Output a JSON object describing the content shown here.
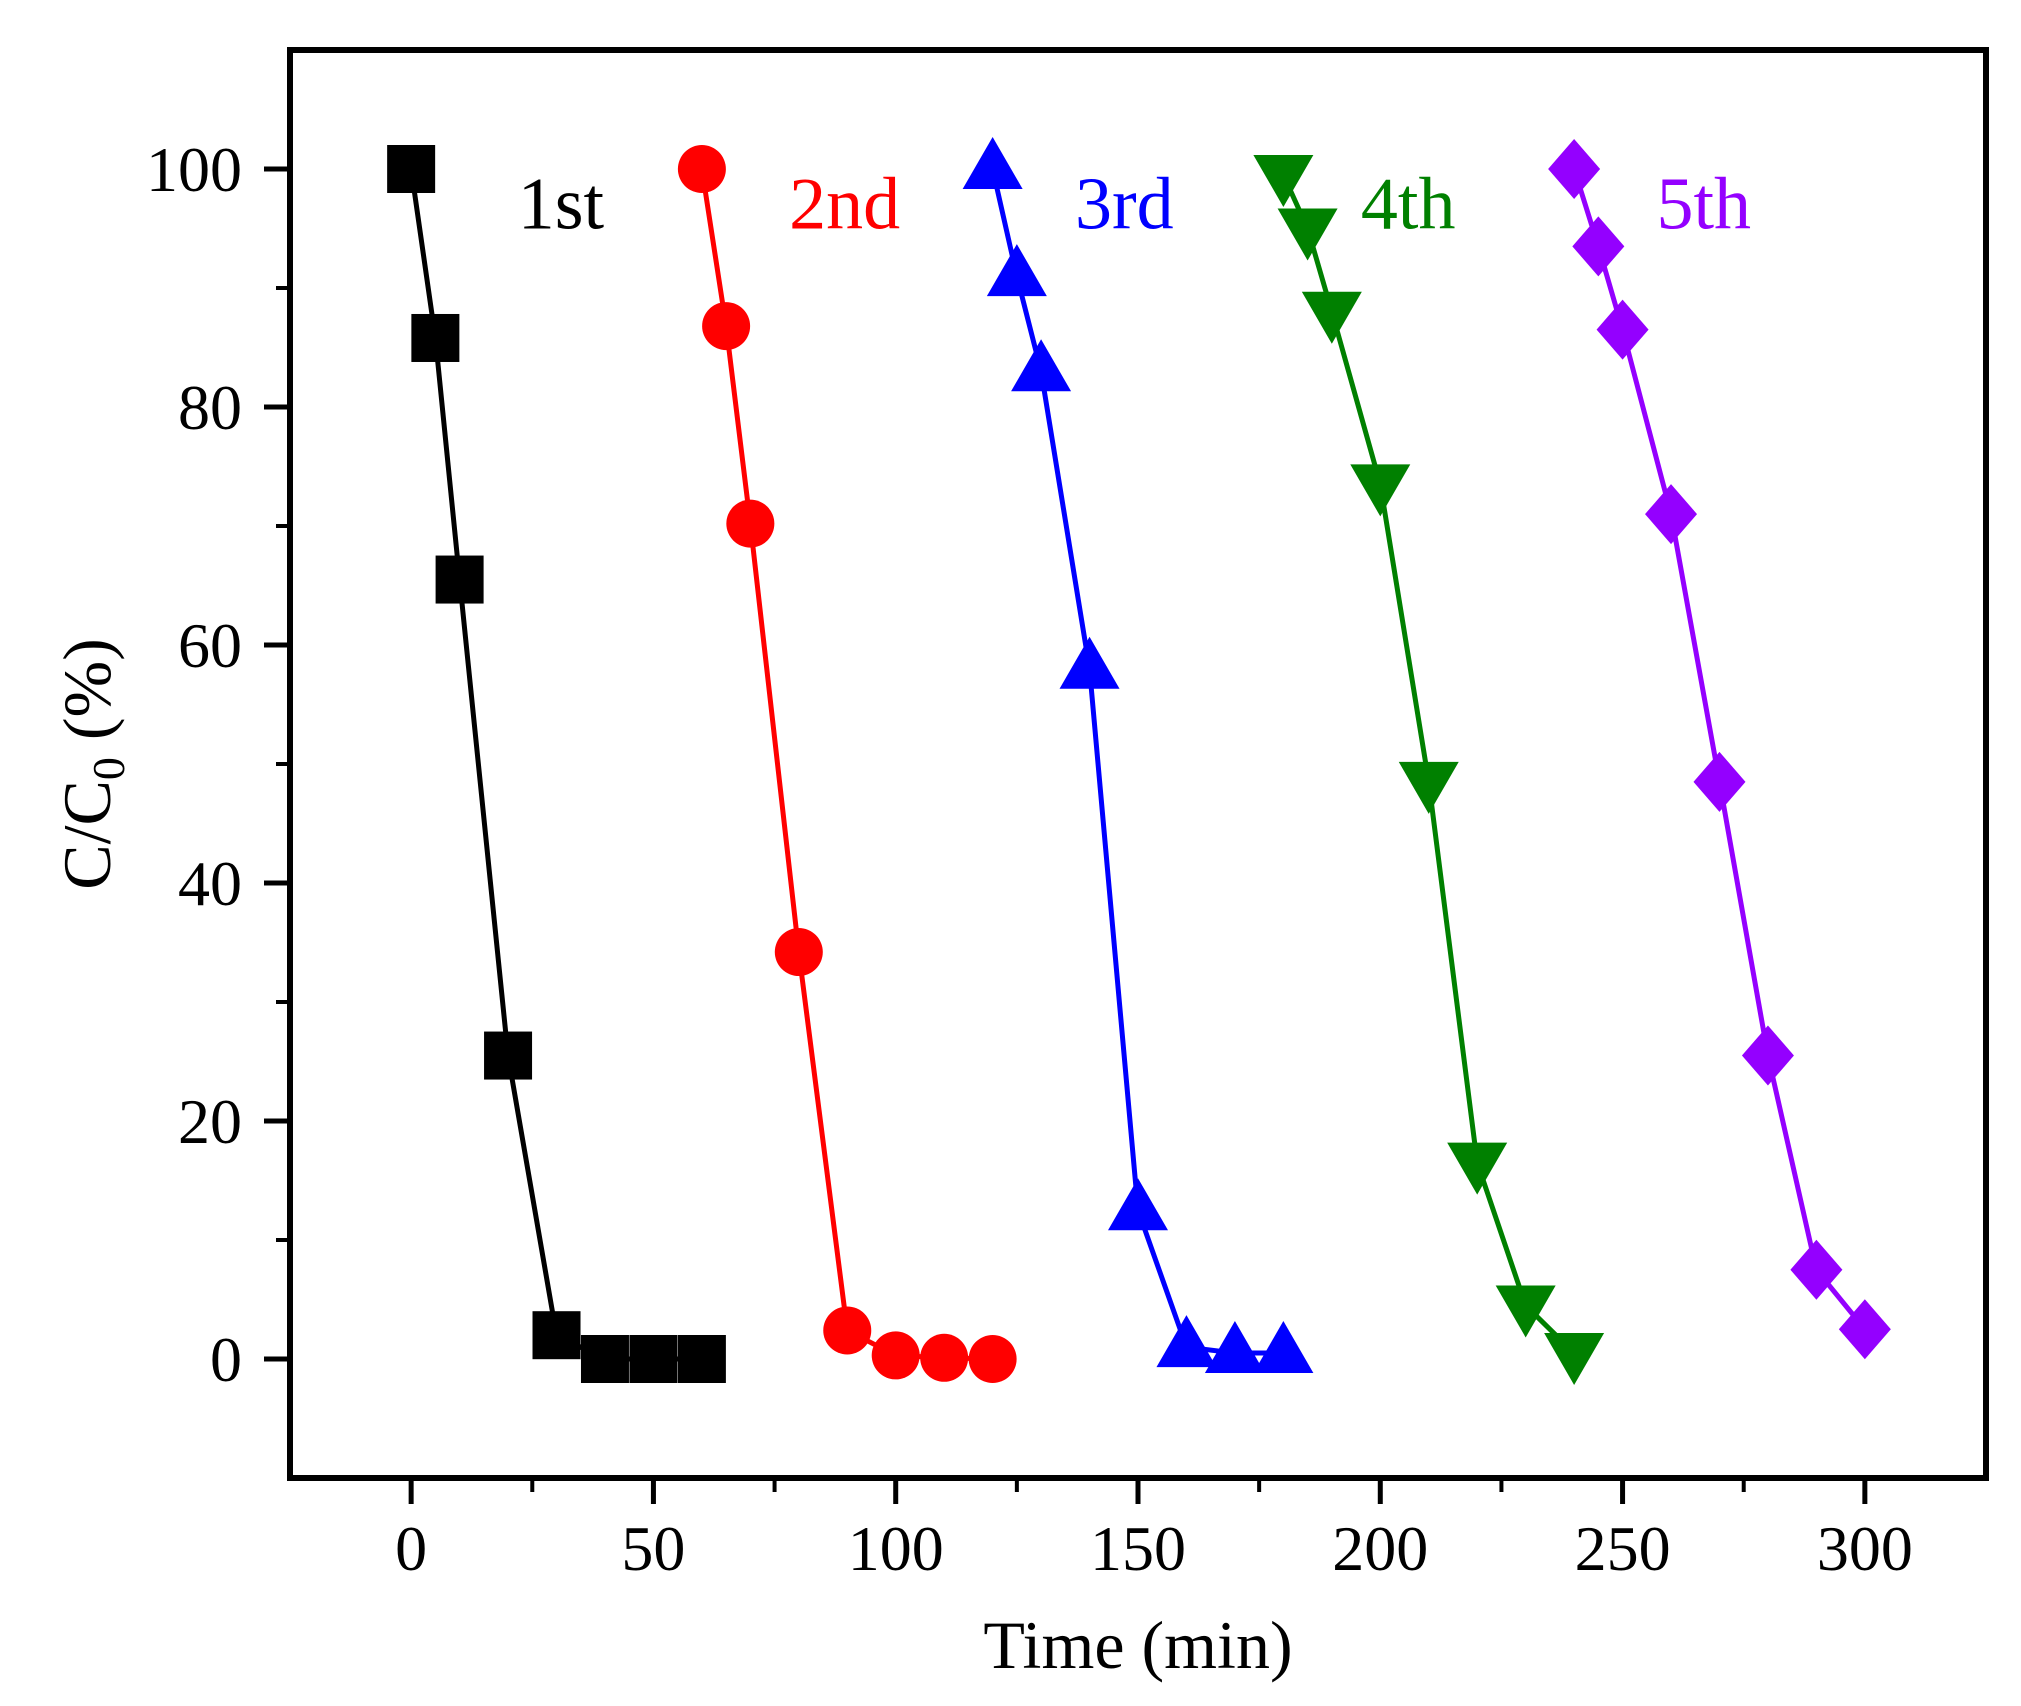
{
  "chart_data": {
    "type": "line",
    "title": "",
    "xlabel": "Time (min)",
    "ylabel": {
      "main": "C/C",
      "subscript": "0",
      "suffix": " (%)"
    },
    "xlim": [
      -25,
      325
    ],
    "ylim": [
      -10,
      110
    ],
    "xticks": [
      0,
      50,
      100,
      150,
      200,
      250,
      300
    ],
    "xtick_labels": [
      "0",
      "50",
      "100",
      "150",
      "200",
      "250",
      "300"
    ],
    "yticks": [
      0,
      20,
      40,
      60,
      80,
      100
    ],
    "ytick_labels": [
      "0",
      "20",
      "40",
      "60",
      "80",
      "100"
    ],
    "grid": false,
    "series": [
      {
        "name": "1st",
        "color": "#000000",
        "marker": "square",
        "x": [
          0,
          5,
          10,
          20,
          30,
          40,
          50,
          60
        ],
        "y": [
          100,
          85.8,
          65.5,
          25.5,
          2,
          0,
          0,
          0
        ],
        "label": {
          "text": "1st",
          "x": 22,
          "y": 97
        }
      },
      {
        "name": "2nd",
        "color": "#ff0000",
        "marker": "circle",
        "x": [
          60,
          65,
          70,
          80,
          90,
          100,
          110,
          120
        ],
        "y": [
          100,
          86.8,
          70.2,
          34.2,
          2.4,
          0.3,
          0.1,
          0
        ],
        "label": {
          "text": "2nd",
          "x": 78,
          "y": 97
        }
      },
      {
        "name": "3rd",
        "color": "#0000ff",
        "marker": "triangle-up",
        "x": [
          120,
          125,
          130,
          140,
          150,
          160,
          170,
          180
        ],
        "y": [
          100,
          91,
          83,
          58,
          12.5,
          1,
          0.5,
          0.5
        ],
        "label": {
          "text": "3rd",
          "x": 137,
          "y": 97
        }
      },
      {
        "name": "4th",
        "color": "#008000",
        "marker": "triangle-down",
        "x": [
          180,
          185,
          190,
          200,
          210,
          220,
          230,
          240
        ],
        "y": [
          99.5,
          95,
          88,
          73.5,
          48.5,
          16.5,
          4.5,
          0.5
        ],
        "label": {
          "text": "4th",
          "x": 196,
          "y": 97
        }
      },
      {
        "name": "5th",
        "color": "#9400ff",
        "marker": "diamond",
        "x": [
          240,
          245,
          250,
          260,
          270,
          280,
          290,
          300
        ],
        "y": [
          100,
          93.5,
          86.5,
          71,
          48.5,
          25.5,
          7.5,
          2.5
        ],
        "label": {
          "text": "5th",
          "x": 257,
          "y": 97
        }
      }
    ]
  }
}
